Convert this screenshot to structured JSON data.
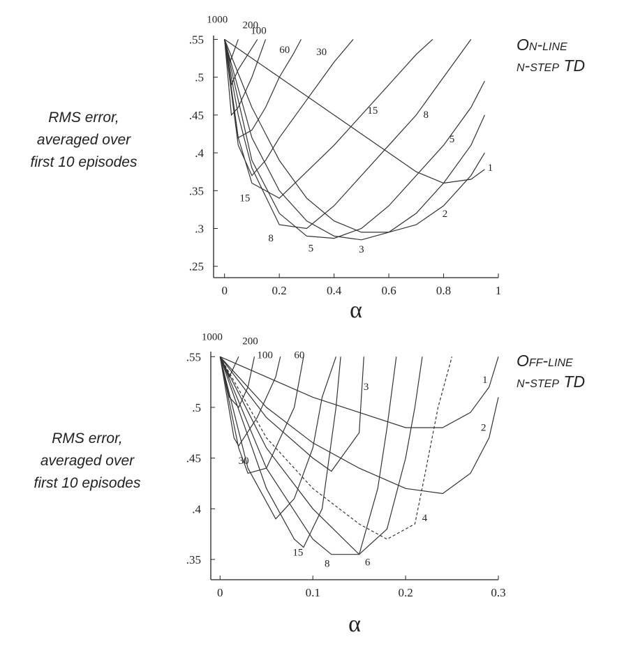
{
  "chart_data": [
    {
      "type": "line",
      "xlabel": "α",
      "ylabel": [
        "RMS error,",
        "averaged over",
        "first 10 episodes"
      ],
      "annotation": [
        "On-line",
        "n-step TD"
      ],
      "xlim": [
        -0.04,
        1
      ],
      "ylim": [
        0.235,
        0.555
      ],
      "xticks": [
        0,
        0.2,
        0.4,
        0.6,
        0.8,
        1
      ],
      "yticks": [
        {
          "value": 0.55,
          "label": ".55"
        },
        {
          "value": 0.5,
          "label": ".5"
        },
        {
          "value": 0.45,
          "label": ".45"
        },
        {
          "value": 0.4,
          "label": ".4"
        },
        {
          "value": 0.35,
          "label": ".35"
        },
        {
          "value": 0.3,
          "label": ".3"
        },
        {
          "value": 0.25,
          "label": ".25"
        }
      ],
      "series": [
        {
          "name": "1",
          "color": "#333333",
          "x": [
            0,
            0.1,
            0.2,
            0.3,
            0.4,
            0.5,
            0.6,
            0.7,
            0.8,
            0.9,
            0.95
          ],
          "values": [
            0.55,
            0.525,
            0.5,
            0.475,
            0.45,
            0.425,
            0.4,
            0.375,
            0.36,
            0.365,
            0.378
          ]
        },
        {
          "name": "2",
          "color": "#333333",
          "x": [
            0,
            0.1,
            0.2,
            0.3,
            0.4,
            0.5,
            0.6,
            0.7,
            0.8,
            0.9,
            0.95
          ],
          "values": [
            0.55,
            0.46,
            0.39,
            0.34,
            0.31,
            0.295,
            0.295,
            0.305,
            0.33,
            0.37,
            0.4
          ]
        },
        {
          "name": "3",
          "color": "#333333",
          "x": [
            0,
            0.1,
            0.2,
            0.3,
            0.4,
            0.5,
            0.6,
            0.7,
            0.8,
            0.9,
            0.95
          ],
          "values": [
            0.55,
            0.42,
            0.35,
            0.31,
            0.29,
            0.285,
            0.295,
            0.32,
            0.36,
            0.41,
            0.45
          ]
        },
        {
          "name": "5",
          "color": "#333333",
          "x": [
            0,
            0.1,
            0.2,
            0.3,
            0.4,
            0.5,
            0.6,
            0.7,
            0.8,
            0.9,
            0.95
          ],
          "values": [
            0.55,
            0.39,
            0.32,
            0.29,
            0.287,
            0.3,
            0.33,
            0.37,
            0.41,
            0.46,
            0.495
          ]
        },
        {
          "name": "8",
          "color": "#333333",
          "x": [
            0,
            0.05,
            0.1,
            0.2,
            0.3,
            0.4,
            0.5,
            0.6,
            0.7,
            0.8,
            0.9
          ],
          "values": [
            0.55,
            0.45,
            0.38,
            0.305,
            0.3,
            0.33,
            0.37,
            0.41,
            0.45,
            0.5,
            0.55
          ]
        },
        {
          "name": "15",
          "color": "#333333",
          "x": [
            0,
            0.05,
            0.1,
            0.2,
            0.3,
            0.4,
            0.5,
            0.6,
            0.7,
            0.76
          ],
          "values": [
            0.55,
            0.42,
            0.36,
            0.34,
            0.375,
            0.41,
            0.45,
            0.49,
            0.53,
            0.55
          ]
        },
        {
          "name": "30",
          "color": "#333333",
          "x": [
            0,
            0.05,
            0.1,
            0.15,
            0.2,
            0.3,
            0.4,
            0.47
          ],
          "values": [
            0.55,
            0.41,
            0.37,
            0.39,
            0.42,
            0.47,
            0.52,
            0.55
          ]
        },
        {
          "name": "60",
          "color": "#333333",
          "x": [
            0,
            0.05,
            0.1,
            0.15,
            0.2,
            0.25,
            0.28
          ],
          "values": [
            0.55,
            0.42,
            0.43,
            0.46,
            0.5,
            0.53,
            0.55
          ]
        },
        {
          "name": "100",
          "color": "#333333",
          "x": [
            0,
            0.025,
            0.05,
            0.1,
            0.15
          ],
          "values": [
            0.55,
            0.45,
            0.46,
            0.5,
            0.55
          ]
        },
        {
          "name": "200",
          "color": "#333333",
          "x": [
            0,
            0.025,
            0.05,
            0.12
          ],
          "values": [
            0.55,
            0.49,
            0.51,
            0.55
          ]
        },
        {
          "name": "1000",
          "color": "#333333",
          "x": [
            0,
            0.02,
            0.05
          ],
          "values": [
            0.55,
            0.52,
            0.55
          ]
        }
      ]
    },
    {
      "type": "line",
      "xlabel": "α",
      "ylabel": [
        "RMS error,",
        "averaged over",
        "first 10 episodes"
      ],
      "annotation": [
        "Off-line",
        "n-step TD"
      ],
      "xlim": [
        -0.01,
        0.3
      ],
      "ylim": [
        0.33,
        0.555
      ],
      "xticks": [
        0,
        0.1,
        0.2,
        0.3
      ],
      "yticks": [
        {
          "value": 0.55,
          "label": ".55"
        },
        {
          "value": 0.5,
          "label": ".5"
        },
        {
          "value": 0.45,
          "label": ".45"
        },
        {
          "value": 0.4,
          "label": ".4"
        },
        {
          "value": 0.35,
          "label": ".35"
        }
      ],
      "series": [
        {
          "name": "1",
          "color": "#333333",
          "x": [
            0,
            0.05,
            0.1,
            0.15,
            0.2,
            0.24,
            0.27,
            0.29,
            0.3
          ],
          "values": [
            0.55,
            0.53,
            0.51,
            0.495,
            0.48,
            0.48,
            0.495,
            0.52,
            0.55
          ]
        },
        {
          "name": "2",
          "color": "#333333",
          "x": [
            0,
            0.05,
            0.1,
            0.15,
            0.2,
            0.24,
            0.27,
            0.29,
            0.3
          ],
          "values": [
            0.55,
            0.5,
            0.465,
            0.44,
            0.42,
            0.415,
            0.435,
            0.47,
            0.51
          ]
        },
        {
          "name": "3",
          "color": "#333333",
          "x": [
            0,
            0.05,
            0.1,
            0.12,
            0.15,
            0.153,
            0.155
          ],
          "values": [
            0.55,
            0.49,
            0.45,
            0.437,
            0.475,
            0.52,
            0.55
          ]
        },
        {
          "name": "4",
          "color": "#333333",
          "dashed": true,
          "x": [
            0,
            0.05,
            0.1,
            0.15,
            0.18,
            0.21,
            0.22,
            0.235,
            0.25
          ],
          "values": [
            0.55,
            0.47,
            0.42,
            0.385,
            0.37,
            0.385,
            0.43,
            0.5,
            0.55
          ]
        },
        {
          "name": "6",
          "color": "#333333",
          "x": [
            0,
            0.05,
            0.1,
            0.15,
            0.18,
            0.2,
            0.21,
            0.218
          ],
          "values": [
            0.55,
            0.46,
            0.4,
            0.355,
            0.38,
            0.45,
            0.5,
            0.55
          ]
        },
        {
          "name": "8",
          "color": "#333333",
          "x": [
            0,
            0.05,
            0.1,
            0.12,
            0.15,
            0.17,
            0.18,
            0.19
          ],
          "values": [
            0.55,
            0.44,
            0.37,
            0.355,
            0.355,
            0.42,
            0.48,
            0.55
          ]
        },
        {
          "name": "15",
          "color": "#333333",
          "x": [
            0,
            0.05,
            0.08,
            0.09,
            0.11,
            0.125,
            0.13
          ],
          "values": [
            0.55,
            0.42,
            0.37,
            0.362,
            0.4,
            0.5,
            0.55
          ]
        },
        {
          "name": "30",
          "color": "#333333",
          "x": [
            0,
            0.03,
            0.06,
            0.08,
            0.1,
            0.11,
            0.125
          ],
          "values": [
            0.55,
            0.44,
            0.39,
            0.41,
            0.46,
            0.51,
            0.55
          ]
        },
        {
          "name": "60",
          "color": "#333333",
          "x": [
            0,
            0.02,
            0.03,
            0.05,
            0.08,
            0.09
          ],
          "values": [
            0.55,
            0.46,
            0.435,
            0.44,
            0.5,
            0.55
          ]
        },
        {
          "name": "100",
          "color": "#333333",
          "x": [
            0,
            0.015,
            0.02,
            0.04,
            0.06,
            0.065
          ],
          "values": [
            0.55,
            0.47,
            0.462,
            0.49,
            0.53,
            0.55
          ]
        },
        {
          "name": "200",
          "color": "#333333",
          "x": [
            0,
            0.01,
            0.02,
            0.03,
            0.037
          ],
          "values": [
            0.55,
            0.51,
            0.5,
            0.52,
            0.55
          ]
        },
        {
          "name": "1000",
          "color": "#333333",
          "x": [
            0,
            0.01,
            0.02
          ],
          "values": [
            0.55,
            0.53,
            0.55
          ]
        }
      ]
    }
  ]
}
